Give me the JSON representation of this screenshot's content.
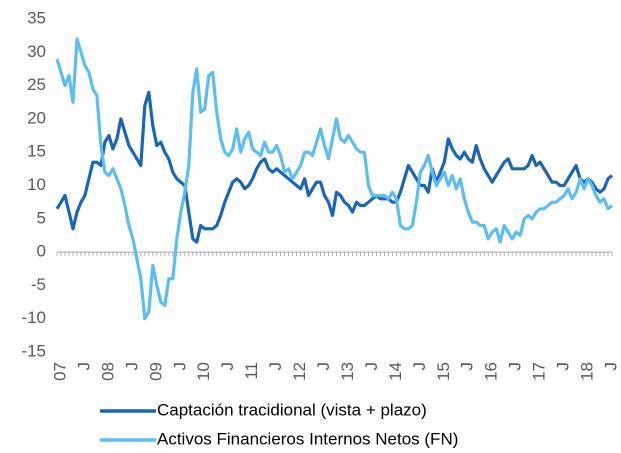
{
  "chart_data": {
    "type": "line",
    "categories": [
      null,
      "07",
      null,
      null,
      null,
      null,
      null,
      "J",
      null,
      null,
      null,
      null,
      null,
      "08",
      null,
      null,
      null,
      null,
      null,
      "J",
      null,
      null,
      null,
      null,
      null,
      "09",
      null,
      null,
      null,
      null,
      null,
      "J",
      null,
      null,
      null,
      null,
      null,
      "10",
      null,
      null,
      null,
      null,
      null,
      "J",
      null,
      null,
      null,
      null,
      null,
      "11",
      null,
      null,
      null,
      null,
      null,
      "J",
      null,
      null,
      null,
      null,
      null,
      "12",
      null,
      null,
      null,
      null,
      null,
      "J",
      null,
      null,
      null,
      null,
      null,
      "13",
      null,
      null,
      null,
      null,
      null,
      "J",
      null,
      null,
      null,
      null,
      null,
      "14",
      null,
      null,
      null,
      null,
      null,
      "J",
      null,
      null,
      null,
      null,
      null,
      "15",
      null,
      null,
      null,
      null,
      null,
      "J",
      null,
      null,
      null,
      null,
      null,
      "16",
      null,
      null,
      null,
      null,
      null,
      "J",
      null,
      null,
      null,
      null,
      null,
      "17",
      null,
      null,
      null,
      null,
      null,
      "J",
      null,
      null,
      null,
      null,
      null,
      "18",
      null,
      null,
      null,
      null,
      null,
      "J"
    ],
    "series": [
      {
        "name": "Captación tracidional (vista + plazo)",
        "color": "#1a66b3",
        "values": [
          6.5,
          7.5,
          8.5,
          6,
          3.5,
          6,
          7.5,
          8.5,
          11,
          13.5,
          13.5,
          13,
          16.5,
          17.5,
          15.5,
          17,
          20,
          18,
          16,
          15,
          14,
          13,
          22,
          24,
          19,
          16,
          16.5,
          15,
          14,
          12,
          11,
          10.5,
          10,
          6,
          2,
          1.5,
          4,
          3.5,
          3.5,
          3.5,
          4,
          5.5,
          7.5,
          9,
          10.5,
          11,
          10.5,
          9.5,
          10,
          11,
          12.5,
          13.5,
          14,
          12.5,
          12,
          12.5,
          12,
          11.5,
          11,
          10.5,
          10,
          9.5,
          11,
          8.5,
          9.5,
          10.5,
          10.5,
          8.5,
          7.5,
          5.5,
          9,
          8.5,
          7.5,
          7,
          6,
          7.5,
          7,
          7,
          7.5,
          8,
          8.5,
          8,
          8,
          8,
          7.5,
          7.5,
          9,
          11,
          13,
          12,
          11,
          10,
          10,
          9,
          12.5,
          10.5,
          12,
          13.5,
          17,
          15.5,
          14.5,
          14,
          15,
          14,
          13.5,
          16,
          14,
          12.5,
          11.5,
          10.5,
          11.5,
          12.5,
          13.5,
          14,
          12.5,
          12.5,
          12.5,
          12.5,
          13,
          14.5,
          13,
          13.5,
          12.5,
          11.5,
          10.5,
          10.5,
          10,
          10,
          11,
          12,
          13,
          11,
          10.5,
          11,
          10.5,
          9.5,
          9,
          9.5,
          11,
          11.5
        ]
      },
      {
        "name": "Activos Financieros Internos Netos (FN)",
        "color": "#5bbdf0",
        "values": [
          29,
          27,
          25,
          26.5,
          22.5,
          32,
          30,
          28,
          27,
          24.5,
          23.5,
          16,
          12,
          11.5,
          12.5,
          11,
          9.5,
          7,
          4,
          2,
          -1,
          -4,
          -10,
          -9,
          -2,
          -5,
          -7.5,
          -8,
          -4,
          -4,
          2,
          6,
          9,
          13,
          24,
          27.5,
          21,
          21.5,
          26.5,
          27,
          21,
          17,
          15,
          14.5,
          15.5,
          18.5,
          15,
          17,
          18,
          15.5,
          15,
          14.5,
          16.5,
          15,
          15,
          16,
          14.5,
          12,
          12.5,
          11,
          12,
          13,
          15,
          15,
          14.5,
          16.5,
          18.5,
          16,
          14,
          17,
          20,
          17,
          16.5,
          17.5,
          16.5,
          15.5,
          15,
          15,
          10,
          8.5,
          8.5,
          8.5,
          8.5,
          8,
          9,
          8,
          4,
          3.5,
          3.5,
          4,
          7.5,
          12,
          13,
          14.5,
          12,
          10,
          11,
          12,
          10,
          11.5,
          9.5,
          11,
          8,
          6,
          4.5,
          4.5,
          4,
          4,
          2,
          3,
          3.5,
          1.5,
          4,
          3,
          2,
          3,
          2.5,
          5,
          5.5,
          5,
          6,
          6.5,
          6.5,
          7,
          7.5,
          7.5,
          8,
          8.5,
          9.5,
          8,
          9,
          11,
          9.5,
          11,
          10,
          8.5,
          7.5,
          8,
          6.5,
          7
        ]
      }
    ],
    "ylim": [
      -15,
      35
    ],
    "yticks": [
      -15,
      -10,
      -5,
      0,
      5,
      10,
      15,
      20,
      25,
      30,
      35
    ],
    "grid": false
  }
}
